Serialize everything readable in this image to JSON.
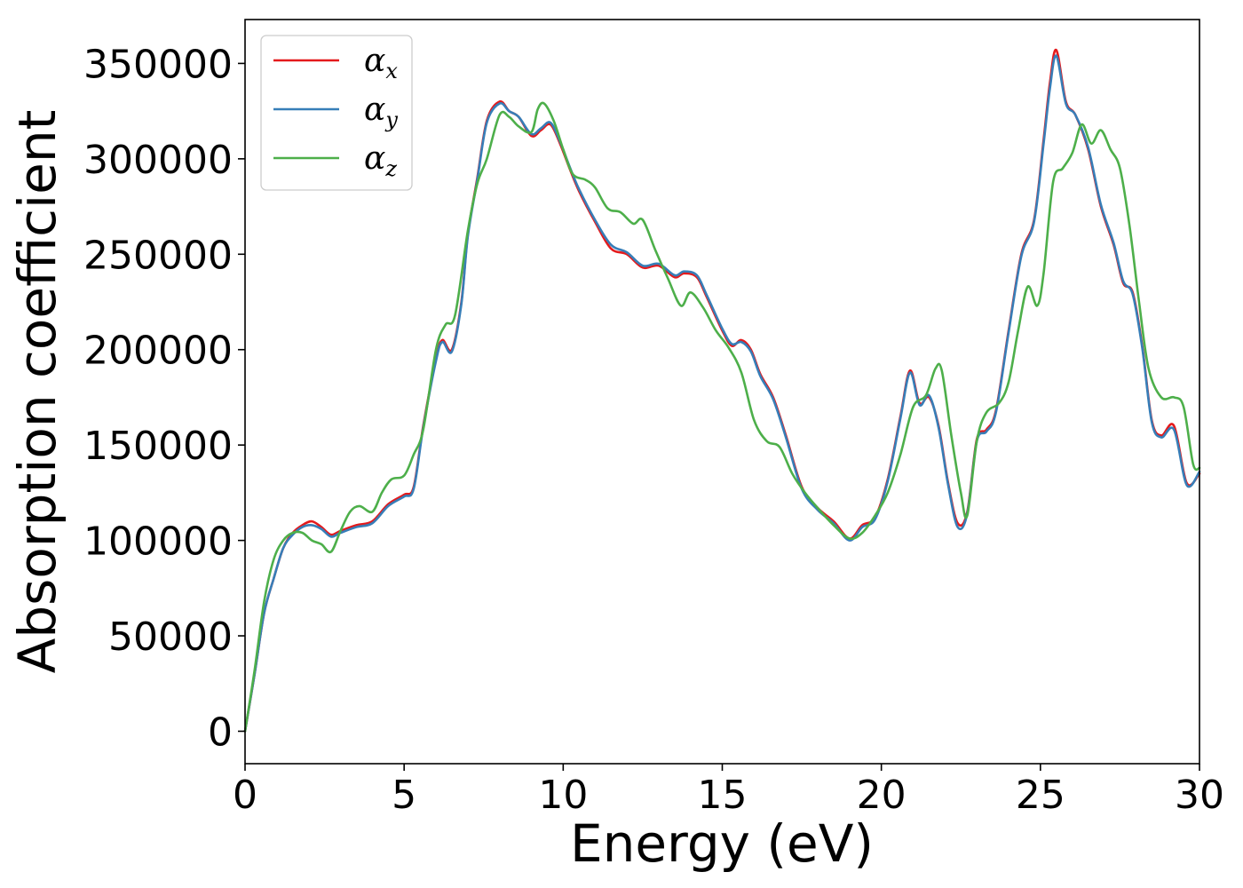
{
  "chart_data": {
    "type": "line",
    "xlabel": "Energy (eV)",
    "ylabel": "Absorption coefficient",
    "xlim": [
      0,
      30
    ],
    "ylim": [
      -17000,
      373000
    ],
    "xticks": [
      0,
      5,
      10,
      15,
      20,
      25,
      30
    ],
    "yticks": [
      0,
      50000,
      100000,
      150000,
      200000,
      250000,
      300000,
      350000
    ],
    "grid": false,
    "legend_position": "top-left",
    "series": [
      {
        "name": "αx",
        "legend_base": "α",
        "legend_sub": "x",
        "color": "#e41a1c",
        "x": [
          0,
          0.3,
          0.6,
          0.9,
          1.2,
          1.5,
          1.8,
          2.1,
          2.4,
          2.7,
          3.0,
          3.5,
          4.0,
          4.5,
          5.0,
          5.3,
          5.6,
          6.0,
          6.2,
          6.5,
          6.8,
          7.0,
          7.3,
          7.6,
          8.0,
          8.3,
          8.6,
          9.0,
          9.3,
          9.6,
          9.9,
          10.2,
          10.5,
          11.0,
          11.5,
          12.0,
          12.5,
          13.0,
          13.5,
          13.8,
          14.2,
          14.5,
          15.0,
          15.3,
          15.6,
          15.9,
          16.2,
          16.6,
          17.0,
          17.5,
          18.0,
          18.5,
          19.0,
          19.4,
          19.8,
          20.2,
          20.6,
          20.9,
          21.2,
          21.5,
          21.8,
          22.1,
          22.4,
          22.7,
          23.0,
          23.3,
          23.6,
          24.0,
          24.4,
          24.8,
          25.1,
          25.3,
          25.5,
          25.8,
          26.1,
          26.5,
          26.9,
          27.3,
          27.6,
          27.9,
          28.2,
          28.5,
          28.8,
          29.2,
          29.6,
          30.0
        ],
        "values": [
          0,
          30000,
          62000,
          80000,
          96000,
          104000,
          108000,
          110000,
          107000,
          103000,
          105000,
          108000,
          110000,
          119000,
          124000,
          128000,
          160000,
          195000,
          205000,
          200000,
          225000,
          260000,
          290000,
          320000,
          330000,
          325000,
          322000,
          312000,
          315000,
          318000,
          308000,
          295000,
          283000,
          267000,
          253000,
          250000,
          243000,
          244000,
          238000,
          240000,
          238000,
          228000,
          210000,
          202000,
          205000,
          200000,
          187000,
          175000,
          155000,
          128000,
          117000,
          110000,
          101000,
          108000,
          112000,
          132000,
          165000,
          189000,
          172000,
          175000,
          160000,
          130000,
          109000,
          115000,
          153000,
          158000,
          168000,
          210000,
          250000,
          268000,
          310000,
          340000,
          357000,
          330000,
          323000,
          305000,
          275000,
          255000,
          235000,
          230000,
          202000,
          163000,
          155000,
          160000,
          130000,
          135000
        ]
      },
      {
        "name": "αy",
        "legend_base": "α",
        "legend_sub": "y",
        "color": "#377eb8",
        "x": [
          0,
          0.3,
          0.6,
          0.9,
          1.2,
          1.5,
          1.8,
          2.1,
          2.4,
          2.7,
          3.0,
          3.5,
          4.0,
          4.5,
          5.0,
          5.3,
          5.6,
          6.0,
          6.2,
          6.5,
          6.8,
          7.0,
          7.3,
          7.6,
          8.0,
          8.3,
          8.6,
          9.0,
          9.3,
          9.6,
          9.9,
          10.2,
          10.5,
          11.0,
          11.5,
          12.0,
          12.5,
          13.0,
          13.5,
          13.8,
          14.2,
          14.5,
          15.0,
          15.3,
          15.6,
          15.9,
          16.2,
          16.6,
          17.0,
          17.5,
          18.0,
          18.5,
          19.0,
          19.4,
          19.8,
          20.2,
          20.6,
          20.9,
          21.2,
          21.5,
          21.8,
          22.1,
          22.4,
          22.7,
          23.0,
          23.3,
          23.6,
          24.0,
          24.4,
          24.8,
          25.1,
          25.3,
          25.5,
          25.8,
          26.1,
          26.5,
          26.9,
          27.3,
          27.6,
          27.9,
          28.2,
          28.5,
          28.8,
          29.2,
          29.6,
          30.0
        ],
        "values": [
          0,
          30000,
          62000,
          80000,
          96000,
          103000,
          107000,
          108000,
          106000,
          102000,
          104000,
          107000,
          109000,
          118000,
          123000,
          127000,
          159000,
          194000,
          204000,
          199000,
          224000,
          259000,
          289000,
          319000,
          329000,
          325000,
          322000,
          313000,
          316000,
          319000,
          309000,
          296000,
          284000,
          268000,
          255000,
          251000,
          244000,
          245000,
          239000,
          241000,
          239000,
          229000,
          211000,
          203000,
          204000,
          199000,
          186000,
          174000,
          154000,
          127000,
          116000,
          109000,
          100000,
          107000,
          111000,
          131000,
          164000,
          188000,
          171000,
          176000,
          159000,
          129000,
          107000,
          114000,
          152000,
          157000,
          167000,
          209000,
          249000,
          267000,
          308000,
          337000,
          354000,
          329000,
          323000,
          306000,
          276000,
          256000,
          236000,
          229000,
          201000,
          162000,
          154000,
          158000,
          129000,
          136000
        ]
      },
      {
        "name": "αz",
        "legend_base": "α",
        "legend_sub": "z",
        "color": "#4daf4a",
        "x": [
          0,
          0.3,
          0.6,
          0.9,
          1.2,
          1.5,
          1.8,
          2.1,
          2.4,
          2.7,
          3.0,
          3.3,
          3.6,
          4.0,
          4.3,
          4.6,
          5.0,
          5.3,
          5.6,
          6.0,
          6.3,
          6.6,
          7.0,
          7.3,
          7.6,
          8.0,
          8.3,
          8.6,
          9.0,
          9.2,
          9.4,
          9.7,
          10.0,
          10.3,
          10.7,
          11.0,
          11.4,
          11.8,
          12.2,
          12.5,
          12.9,
          13.3,
          13.7,
          14.0,
          14.4,
          14.8,
          15.2,
          15.6,
          16.0,
          16.4,
          16.8,
          17.2,
          17.6,
          18.0,
          18.5,
          19.0,
          19.4,
          19.8,
          20.2,
          20.6,
          21.0,
          21.4,
          21.7,
          21.9,
          22.2,
          22.5,
          22.7,
          23.0,
          23.3,
          23.7,
          24.0,
          24.3,
          24.6,
          24.9,
          25.1,
          25.4,
          25.7,
          26.0,
          26.3,
          26.6,
          26.9,
          27.2,
          27.5,
          27.8,
          28.1,
          28.4,
          28.8,
          29.2,
          29.5,
          29.8,
          30.0
        ],
        "values": [
          0,
          32000,
          68000,
          90000,
          100000,
          104000,
          104000,
          100000,
          98000,
          94000,
          105000,
          115000,
          118000,
          115000,
          125000,
          132000,
          134000,
          145000,
          158000,
          200000,
          213000,
          218000,
          262000,
          287000,
          300000,
          323000,
          322000,
          317000,
          314000,
          326000,
          329000,
          320000,
          305000,
          292000,
          289000,
          285000,
          274000,
          272000,
          266000,
          268000,
          252000,
          237000,
          223000,
          230000,
          222000,
          210000,
          201000,
          188000,
          163000,
          152000,
          149000,
          135000,
          125000,
          117000,
          108000,
          101000,
          104000,
          113000,
          125000,
          145000,
          170000,
          176000,
          190000,
          189000,
          155000,
          125000,
          113000,
          152000,
          167000,
          172000,
          183000,
          210000,
          233000,
          223000,
          240000,
          288000,
          295000,
          303000,
          318000,
          308000,
          315000,
          305000,
          295000,
          265000,
          225000,
          190000,
          175000,
          175000,
          170000,
          140000,
          138000
        ]
      }
    ]
  }
}
